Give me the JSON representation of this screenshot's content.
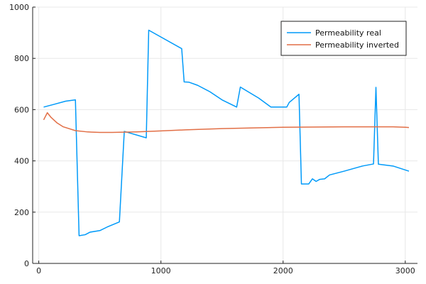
{
  "chart_data": {
    "type": "line",
    "title": "",
    "xlabel": "",
    "ylabel": "",
    "xlim": [
      -50,
      3100
    ],
    "ylim": [
      0,
      1000
    ],
    "x_ticks": [
      0,
      1000,
      2000,
      3000
    ],
    "y_ticks": [
      0,
      200,
      400,
      600,
      800,
      1000
    ],
    "x_tick_labels": [
      "0",
      "1000",
      "2000",
      "3000"
    ],
    "y_tick_labels": [
      "0",
      "200",
      "400",
      "600",
      "800",
      "1000"
    ],
    "grid": true,
    "legend_position": "top-right",
    "series": [
      {
        "name": "Permeability real",
        "color": "#009af9",
        "x": [
          40,
          120,
          220,
          300,
          330,
          380,
          420,
          500,
          560,
          660,
          700,
          880,
          900,
          1170,
          1190,
          1230,
          1300,
          1400,
          1500,
          1620,
          1650,
          1800,
          1900,
          1950,
          2030,
          2050,
          2130,
          2150,
          2210,
          2240,
          2270,
          2300,
          2340,
          2380,
          2500,
          2650,
          2740,
          2760,
          2780,
          2900,
          3030
        ],
        "y": [
          610,
          620,
          633,
          638,
          108,
          112,
          122,
          128,
          142,
          162,
          515,
          490,
          910,
          838,
          708,
          707,
          695,
          670,
          638,
          610,
          688,
          645,
          610,
          610,
          610,
          628,
          660,
          310,
          310,
          330,
          320,
          328,
          330,
          345,
          360,
          380,
          388,
          687,
          387,
          380,
          360
        ]
      },
      {
        "name": "Permeability inverted",
        "color": "#e26f46",
        "x": [
          40,
          70,
          100,
          150,
          200,
          300,
          400,
          500,
          600,
          700,
          800,
          1000,
          1200,
          1500,
          1800,
          2000,
          2200,
          2500,
          2800,
          2900,
          3000,
          3030
        ],
        "y": [
          560,
          588,
          570,
          548,
          533,
          518,
          513,
          511,
          511,
          512,
          513,
          517,
          521,
          526,
          529,
          531,
          532,
          533,
          533,
          533,
          531,
          530
        ]
      }
    ]
  }
}
